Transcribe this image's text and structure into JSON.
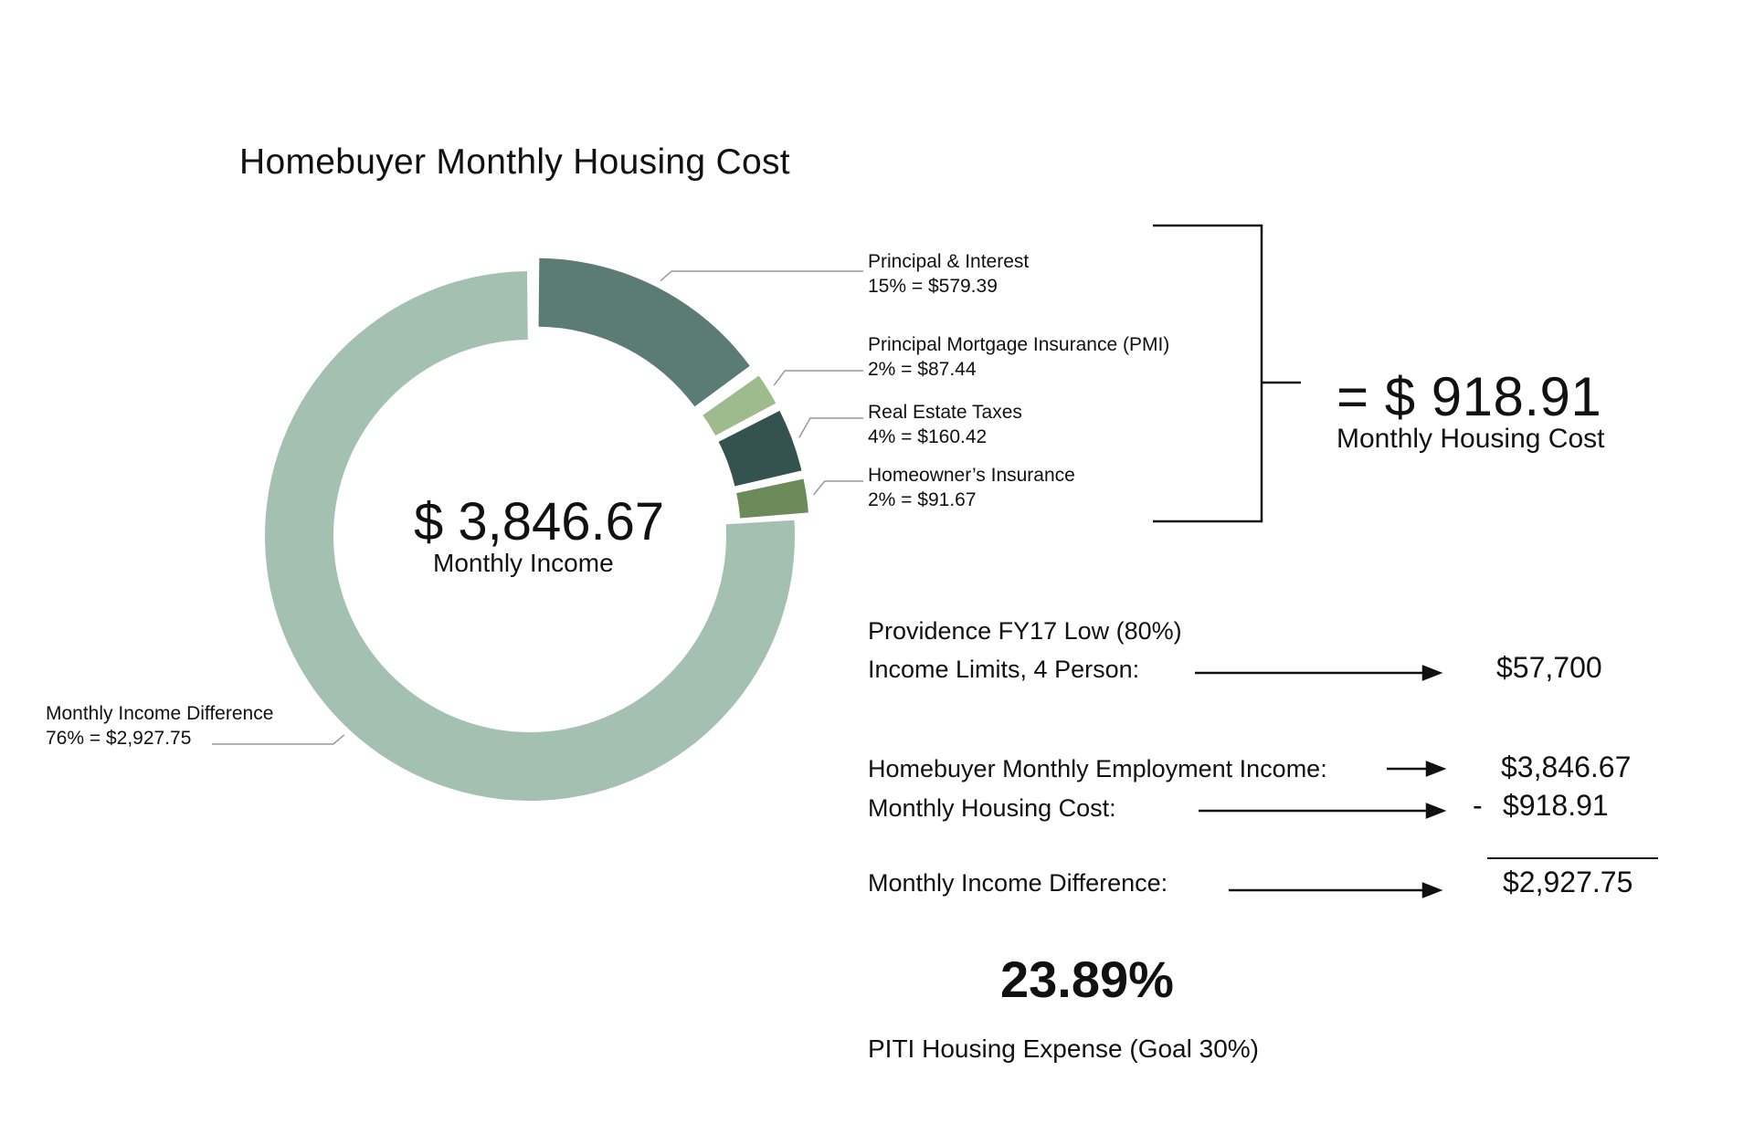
{
  "title": "Homebuyer Monthly Housing Cost",
  "chart_data": {
    "type": "donut",
    "title": "Homebuyer Monthly Housing Cost",
    "center": {
      "amount": "$ 3,846.67",
      "label": "Monthly Income"
    },
    "slices": [
      {
        "name": "Principal & Interest",
        "label": "Principal & Interest",
        "value_text": "15% = $579.39",
        "percent": 15,
        "value": 579.39,
        "color": "#5a7c75"
      },
      {
        "name": "Principal Mortgage Insurance (PMI)",
        "label": "Principal Mortgage Insurance (PMI)",
        "value_text": "2% = $87.44",
        "percent": 2,
        "value": 87.44,
        "color": "#9dbb8c"
      },
      {
        "name": "Real Estate Taxes",
        "label": "Real Estate Taxes",
        "value_text": "4% = $160.42",
        "percent": 4,
        "value": 160.42,
        "color": "#345350"
      },
      {
        "name": "Homeowner's Insurance",
        "label": "Homeowner’s Insurance",
        "value_text": "2% = $91.67",
        "percent": 2,
        "value": 91.67,
        "color": "#6b8b5a"
      },
      {
        "name": "Monthly Income Difference",
        "label": "Monthly Income Difference",
        "value_text": "76% = $2,927.75",
        "percent": 76,
        "value": 2927.75,
        "color": "#a3c0b0"
      }
    ],
    "exploded": [
      "Principal & Interest",
      "Principal Mortgage Insurance (PMI)",
      "Real Estate Taxes",
      "Homeowner's Insurance"
    ]
  },
  "total": {
    "amount": "= $ 918.91",
    "label": "Monthly Housing Cost"
  },
  "calculation": {
    "limits_line1": "Providence FY17 Low (80%)",
    "limits_line2": "Income Limits, 4 Person:",
    "limits_value": "$57,700",
    "employment_label": "Homebuyer Monthly Employment Income:",
    "employment_value": "$3,846.67",
    "housing_label": "Monthly Housing Cost:",
    "housing_sign": "-",
    "housing_value": "$918.91",
    "difference_label": "Monthly Income Difference:",
    "difference_value": "$2,927.75"
  },
  "result": {
    "percent": "23.89%",
    "caption": "PITI Housing Expense (Goal 30%)"
  }
}
